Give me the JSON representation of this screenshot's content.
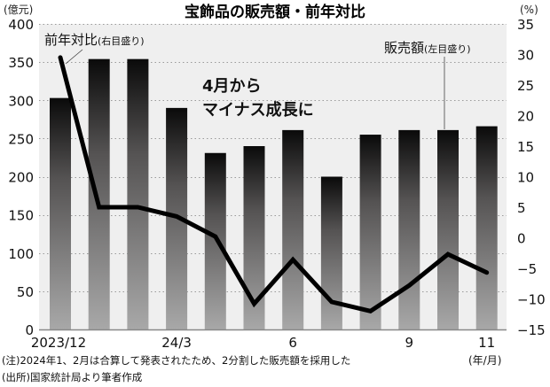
{
  "title": "宝飾品の販売額・前年対比",
  "left_unit": "(億元)",
  "right_unit": "(%)",
  "x_unit": "(年/月)",
  "annotation": [
    "4月から",
    "マイナス成長に"
  ],
  "series_labels": {
    "line": {
      "main": "前年対比",
      "sub": "(右目盛り)"
    },
    "bar": {
      "main": "販売額",
      "sub": "(左目盛り)"
    }
  },
  "notes": [
    "(注)2024年1、2月は合算して発表されたため、2分割した販売額を採用した",
    "(出所)国家統計局より筆者作成"
  ],
  "colors": {
    "plot_bg": "#efefef",
    "bar_top": "#0a0a0a",
    "bar_mid": "#555353",
    "bar_bottom": "#a8a8a8",
    "line": "#000000",
    "grid": "#9a9a9a"
  },
  "chart_data": {
    "type": "bar+line",
    "title": "宝飾品の販売額・前年対比",
    "categories": [
      "2023/12",
      "24/1",
      "24/2",
      "24/3",
      "24/4",
      "24/5",
      "24/6",
      "24/7",
      "24/8",
      "24/9",
      "24/10",
      "24/11"
    ],
    "x_tick_labels": [
      {
        "index": 0,
        "label": "2023/12"
      },
      {
        "index": 3,
        "label": "24/3"
      },
      {
        "index": 6,
        "label": "6"
      },
      {
        "index": 9,
        "label": "9"
      },
      {
        "index": 11,
        "label": "11"
      }
    ],
    "series": [
      {
        "name": "販売額",
        "axis": "left",
        "type": "bar",
        "unit": "億元",
        "values": [
          303,
          354,
          354,
          290,
          231,
          240,
          261,
          200,
          255,
          261,
          261,
          266
        ]
      },
      {
        "name": "前年対比",
        "axis": "right",
        "type": "line",
        "unit": "%",
        "values": [
          29.5,
          5.0,
          5.0,
          3.5,
          0.2,
          -10.8,
          -3.6,
          -10.5,
          -12.0,
          -7.8,
          -2.7,
          -5.7
        ]
      }
    ],
    "left_axis": {
      "label": "億元",
      "min": 0,
      "max": 400,
      "ticks": [
        0,
        50,
        100,
        150,
        200,
        250,
        300,
        350,
        400
      ]
    },
    "right_axis": {
      "label": "%",
      "min": -15,
      "max": 35,
      "ticks": [
        -15,
        -10,
        -5,
        0,
        5,
        10,
        15,
        20,
        25,
        30,
        35
      ]
    },
    "grid": true,
    "xlabel": "(年/月)"
  }
}
